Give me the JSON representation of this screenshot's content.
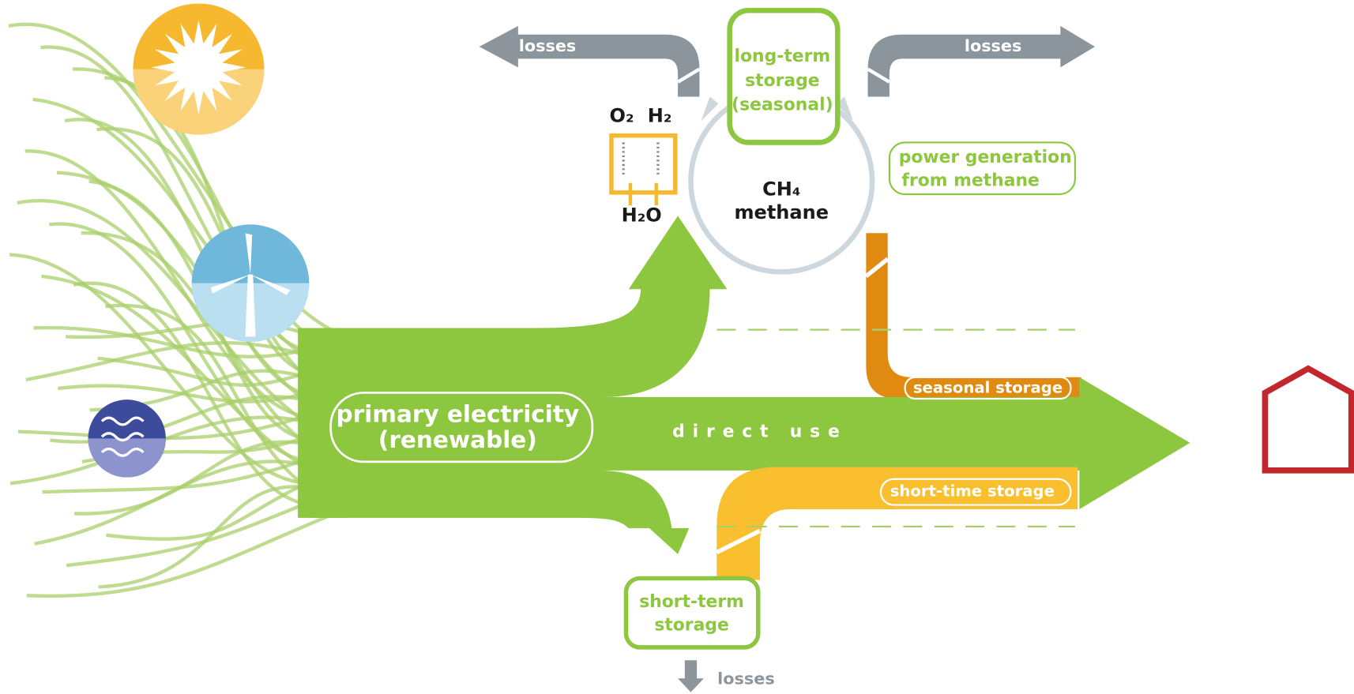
{
  "losses": [
    "losses",
    "losses",
    "losses"
  ],
  "long_term_storage": [
    "long-term",
    "storage",
    "(seasonal)"
  ],
  "electrolysis": {
    "o2": "O₂",
    "h2": "H₂",
    "h2o": "H₂O"
  },
  "methane": {
    "formula": "CH₄",
    "name": "methane"
  },
  "power_generation": [
    "power generation",
    "from methane"
  ],
  "primary_electricity": [
    "primary electricity",
    "(renewable)"
  ],
  "flows": {
    "direct_use": "direct use",
    "seasonal_storage": "seasonal storage",
    "short_time_storage": "short-time storage"
  },
  "short_term_storage": [
    "short-term",
    "storage"
  ]
}
